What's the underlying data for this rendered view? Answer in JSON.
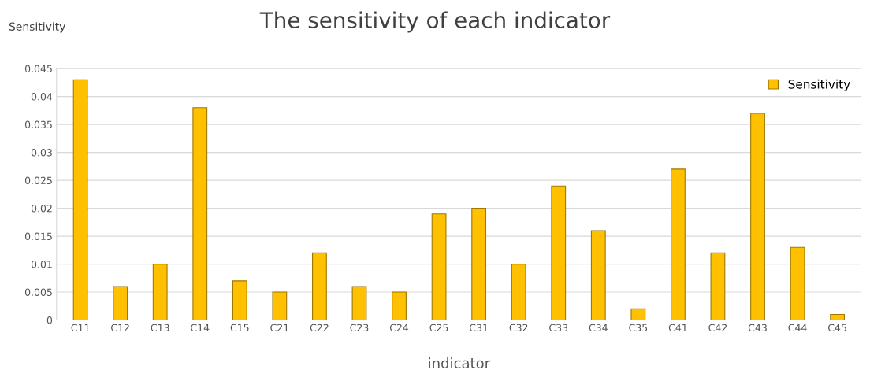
{
  "chart_data": {
    "type": "bar",
    "title": "The sensitivity of each indicator",
    "xlabel": "indicator",
    "ylabel": "Sensitivity",
    "categories": [
      "C11",
      "C12",
      "C13",
      "C14",
      "C15",
      "C21",
      "C22",
      "C23",
      "C24",
      "C25",
      "C31",
      "C32",
      "C33",
      "C34",
      "C35",
      "C41",
      "C42",
      "C43",
      "C44",
      "C45"
    ],
    "series": [
      {
        "name": "Sensitivity",
        "color": "#ffc000",
        "values": [
          0.043,
          0.006,
          0.01,
          0.038,
          0.007,
          0.005,
          0.012,
          0.006,
          0.005,
          0.019,
          0.02,
          0.01,
          0.024,
          0.016,
          0.002,
          0.027,
          0.012,
          0.037,
          0.013,
          0.001
        ]
      }
    ],
    "ylim": [
      0,
      0.045
    ],
    "yticks": [
      0,
      0.005,
      0.01,
      0.015,
      0.02,
      0.025,
      0.03,
      0.035,
      0.04,
      0.045
    ],
    "grid": "y",
    "legend": "top right"
  }
}
